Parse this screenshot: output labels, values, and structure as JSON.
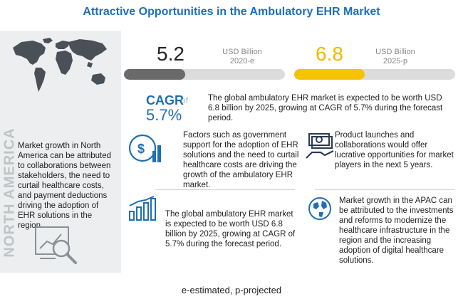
{
  "title": "Attractive Opportunities in the Ambulatory EHR Market",
  "left_panel": {
    "region_label": "NORTH AMERICA",
    "text": "Market growth in North America can be attributed to collaborations between stakeholders, the need to curtail healthcare costs, and payment deductions driving the adoption of EHR solutions in the region.",
    "icons": [
      "world-map-icon",
      "analytics-magnifier-icon"
    ]
  },
  "value_2020": {
    "value": "5.2",
    "unit": "USD Billion",
    "period": "2020-e",
    "bar_fraction": 0.38,
    "bar_color": "#6a6a6a"
  },
  "value_2025": {
    "value": "6.8",
    "unit": "USD Billion",
    "period": "2025-p",
    "bar_fraction": 0.44,
    "bar_color": "#f6c300"
  },
  "cagr": {
    "label": "CAGR",
    "of": "of",
    "value": "5.7%",
    "text": "The global ambulatory EHR market is expected to be worth USD 6.8 billion by 2025, growing at CAGR of 5.7% during the forecast period."
  },
  "blocks": [
    {
      "icon": "money-chart-icon",
      "text": "Factors such as government support for the adoption of EHR solutions and the need to curtail healthcare costs are driving the growth of the ambulatory EHR market."
    },
    {
      "icon": "bar-growth-icon",
      "text": "The global ambulatory EHR market is expected to be worth USD 6.8 billion by 2025, growing at CAGR of 5.7% during the forecast period."
    },
    {
      "icon": "money-hand-icon",
      "text": "Product launches and collaborations would offer lucrative opportunities for market players in the next 5 years."
    },
    {
      "icon": "globe-icon",
      "text": "Market growth in the APAC can be attributed to the investments and reforms to modernize the healthcare infrastructure in the region and the increasing adoption of digital healthcare solutions."
    }
  ],
  "footnote": "e-estimated, p-projected"
}
